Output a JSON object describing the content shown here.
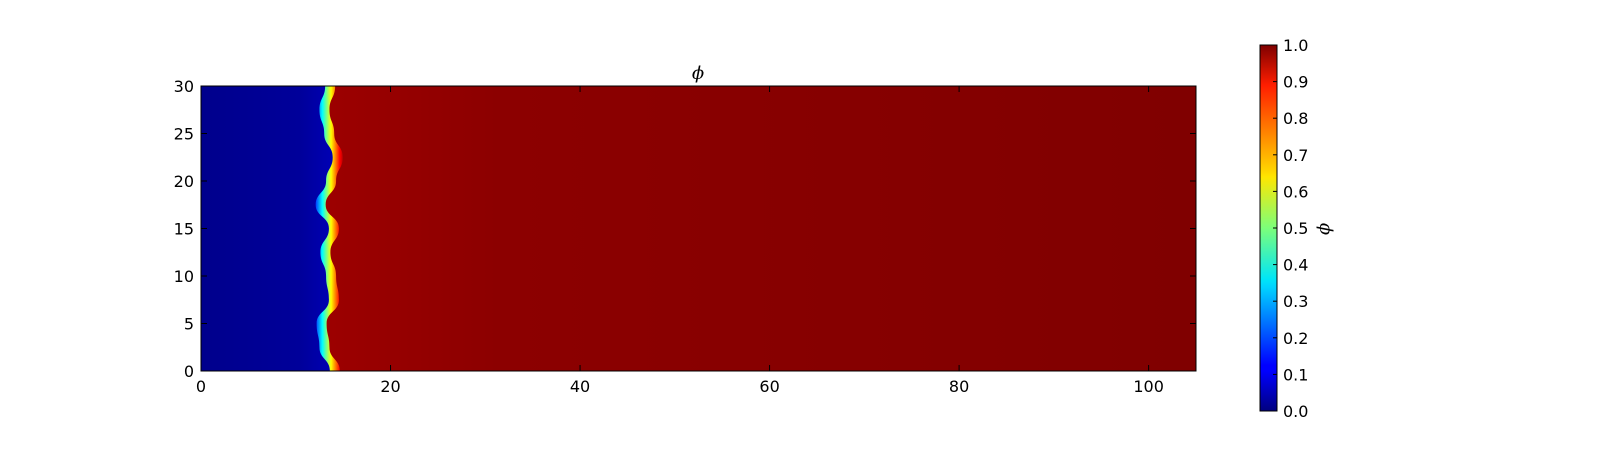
{
  "chart_data": {
    "type": "heatmap",
    "title": "ϕ",
    "xlabel": "",
    "ylabel": "",
    "xlim": [
      0,
      105
    ],
    "ylim": [
      0,
      30
    ],
    "x_ticks": [
      "0",
      "20",
      "40",
      "60",
      "80",
      "100"
    ],
    "y_ticks": [
      "0",
      "5",
      "10",
      "15",
      "20",
      "25",
      "30"
    ],
    "colormap": "jet",
    "colorbar": {
      "label": "ϕ",
      "range": [
        0.0,
        1.0
      ],
      "ticks": [
        "0.0",
        "0.1",
        "0.2",
        "0.3",
        "0.4",
        "0.5",
        "0.6",
        "0.7",
        "0.8",
        "0.9",
        "1.0"
      ]
    },
    "field": {
      "description_values": "phi ≈ 0 for x < front, ≈ 1 for x > front",
      "front_x": [
        13.6,
        12.5,
        12.2,
        13.5,
        13.2,
        12.6,
        13.5,
        12.1,
        13.2,
        13.9,
        13.0,
        12.5,
        13.1
      ],
      "front_y": [
        0,
        2.5,
        5,
        7.5,
        10,
        12.5,
        15,
        17.5,
        20,
        22.5,
        25,
        27.5,
        30
      ],
      "left_phi_range": [
        0.0,
        0.05
      ],
      "right_phi_range": [
        0.97,
        1.0
      ]
    }
  }
}
